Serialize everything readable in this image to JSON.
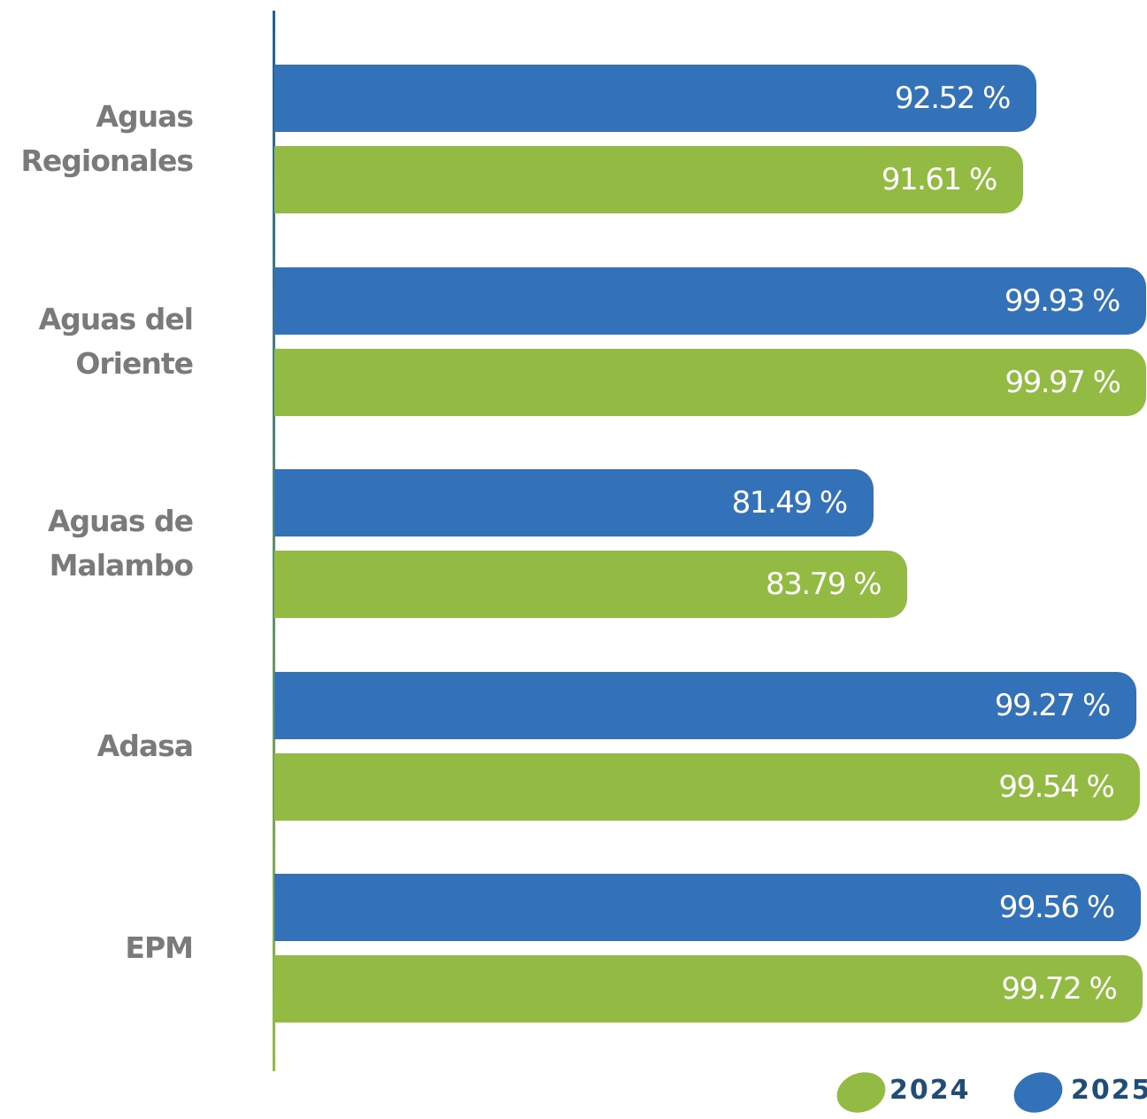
{
  "chart_data": {
    "type": "bar",
    "orientation": "horizontal",
    "categories": [
      "Aguas Regionales",
      "Aguas del Oriente",
      "Aguas de Malambo",
      "Adasa",
      "EPM"
    ],
    "series": [
      {
        "name": "2025",
        "color": "#3371b8",
        "values": [
          92.52,
          99.93,
          81.49,
          99.27,
          99.56
        ],
        "value_labels": [
          "92.52 %",
          "99.93 %",
          "81.49 %",
          "99.27 %",
          "99.56 %"
        ]
      },
      {
        "name": "2024",
        "color": "#93bb43",
        "values": [
          91.61,
          99.97,
          83.79,
          99.54,
          99.72
        ],
        "value_labels": [
          "91.61 %",
          "99.97 %",
          "83.79 %",
          "99.54 %",
          "99.72 %"
        ]
      }
    ],
    "xlim": [
      41,
      100
    ]
  }
}
